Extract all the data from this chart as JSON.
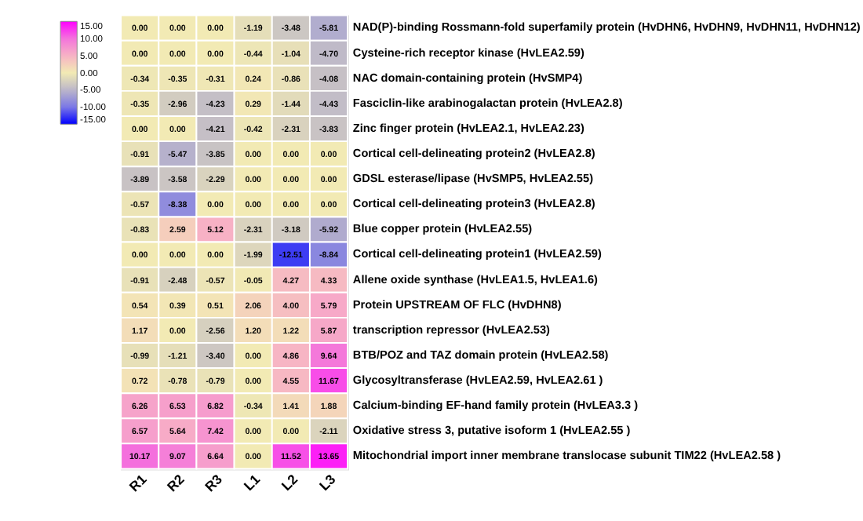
{
  "chart_data": {
    "type": "heatmap",
    "categories": [
      "R1",
      "R2",
      "R3",
      "L1",
      "L2",
      "L3"
    ],
    "y_categories": [
      "NAD(P)-binding Rossmann-fold superfamily protein (HvDHN6, HvDHN9, HvDHN11, HvDHN12)",
      "Cysteine-rich receptor kinase (HvLEA2.59)",
      "NAC domain-containing protein (HvSMP4)",
      "Fasciclin-like arabinogalactan protein (HvLEA2.8)",
      "Zinc finger protein (HvLEA2.1, HvLEA2.23)",
      "Cortical cell-delineating protein2 (HvLEA2.8)",
      "GDSL esterase/lipase (HvSMP5, HvLEA2.55)",
      "Cortical cell-delineating protein3 (HvLEA2.8)",
      "Blue copper protein (HvLEA2.55)",
      "Cortical cell-delineating protein1 (HvLEA2.59)",
      "Allene oxide synthase (HvLEA1.5, HvLEA1.6)",
      "Protein UPSTREAM OF FLC (HvDHN8)",
      "transcription repressor (HvLEA2.53)",
      "BTB/POZ and TAZ domain protein (HvLEA2.58)",
      "Glycosyltransferase (HvLEA2.59, HvLEA2.61 )",
      "Calcium-binding EF-hand family protein (HvLEA3.3 )",
      "Oxidative stress 3, putative isoform 1 (HvLEA2.55 )",
      "Mitochondrial import inner membrane translocase subunit TIM22 (HvLEA2.58 )"
    ],
    "cells": [
      [
        0.0,
        0.0,
        0.0,
        -1.19,
        -3.48,
        -5.81
      ],
      [
        0.0,
        0.0,
        0.0,
        -0.44,
        -1.04,
        -4.7
      ],
      [
        -0.34,
        -0.35,
        -0.31,
        0.24,
        -0.86,
        -4.08
      ],
      [
        -0.35,
        -2.96,
        -4.23,
        0.29,
        -1.44,
        -4.43
      ],
      [
        0.0,
        0.0,
        -4.21,
        -0.42,
        -2.31,
        -3.83
      ],
      [
        -0.91,
        -5.47,
        -3.85,
        0.0,
        0.0,
        0.0
      ],
      [
        -3.89,
        -3.58,
        -2.29,
        0.0,
        0.0,
        0.0
      ],
      [
        -0.57,
        -8.38,
        0.0,
        0.0,
        0.0,
        0.0
      ],
      [
        -0.83,
        2.59,
        5.12,
        -2.31,
        -3.18,
        -5.92
      ],
      [
        0.0,
        0.0,
        0.0,
        -1.99,
        -12.51,
        -8.84
      ],
      [
        -0.91,
        -2.48,
        -0.57,
        -0.05,
        4.27,
        4.33
      ],
      [
        0.54,
        0.39,
        0.51,
        2.06,
        4.0,
        5.79
      ],
      [
        1.17,
        0.0,
        -2.56,
        1.2,
        1.22,
        5.87
      ],
      [
        -0.99,
        -1.21,
        -3.4,
        0.0,
        4.86,
        9.64
      ],
      [
        0.72,
        -0.78,
        -0.79,
        0.0,
        4.55,
        11.67
      ],
      [
        6.26,
        6.53,
        6.82,
        -0.34,
        1.41,
        1.88
      ],
      [
        6.57,
        5.64,
        7.42,
        0.0,
        0.0,
        -2.11
      ],
      [
        10.17,
        9.07,
        6.64,
        0.0,
        11.52,
        13.65
      ]
    ],
    "cell_labels": [
      [
        "0.00",
        "0.00",
        "0.00",
        "-1.19",
        "-3.48",
        "-5.81"
      ],
      [
        "0.00",
        "0.00",
        "0.00",
        "-0.44",
        "-1.04",
        "-4.70"
      ],
      [
        "-0.34",
        "-0.35",
        "-0.31",
        "0.24",
        "-0.86",
        "-4.08"
      ],
      [
        "-0.35",
        "-2.96",
        "-4.23",
        "0.29",
        "-1.44",
        "-4.43"
      ],
      [
        "0.00",
        "0.00",
        "-4.21",
        "-0.42",
        "-2.31",
        "-3.83"
      ],
      [
        "-0.91",
        "-5.47",
        "-3.85",
        "0.00",
        "0.00",
        "0.00"
      ],
      [
        "-3.89",
        "-3.58",
        "-2.29",
        "0.00",
        "0.00",
        "0.00"
      ],
      [
        "-0.57",
        "-8.38",
        "0.00",
        "0.00",
        "0.00",
        "0.00"
      ],
      [
        "-0.83",
        "2.59",
        "5.12",
        "-2.31",
        "-3.18",
        "-5.92"
      ],
      [
        "0.00",
        "0.00",
        "0.00",
        "-1.99",
        "-12.51",
        "-8.84"
      ],
      [
        "-0.91",
        "-2.48",
        "-0.57",
        "-0.05",
        "4.27",
        "4.33"
      ],
      [
        "0.54",
        "0.39",
        "0.51",
        "2.06",
        "4.00",
        "5.79"
      ],
      [
        "1.17",
        "0.00",
        "-2.56",
        "1.20",
        "1.22",
        "5.87"
      ],
      [
        "-0.99",
        "-1.21",
        "-3.40",
        "0.00",
        "4.86",
        "9.64"
      ],
      [
        "0.72",
        "-0.78",
        "-0.79",
        "0.00",
        "4.55",
        "11.67"
      ],
      [
        "6.26",
        "6.53",
        "6.82",
        "-0.34",
        "1.41",
        "1.88"
      ],
      [
        "6.57",
        "5.64",
        "7.42",
        "0.00",
        "0.00",
        "-2.11"
      ],
      [
        "10.17",
        "9.07",
        "6.64",
        "0.00",
        "11.52",
        "13.65"
      ]
    ],
    "clim": [
      -15,
      15
    ],
    "cticks": [
      {
        "value": 15,
        "label": "15.00"
      },
      {
        "value": 10,
        "label": "10.00"
      },
      {
        "value": 5,
        "label": "5.00"
      },
      {
        "value": 0,
        "label": "0.00"
      },
      {
        "value": -5,
        "label": "-5.00"
      },
      {
        "value": -10,
        "label": "-10.00"
      },
      {
        "value": -15,
        "label": "-15.00"
      }
    ]
  }
}
